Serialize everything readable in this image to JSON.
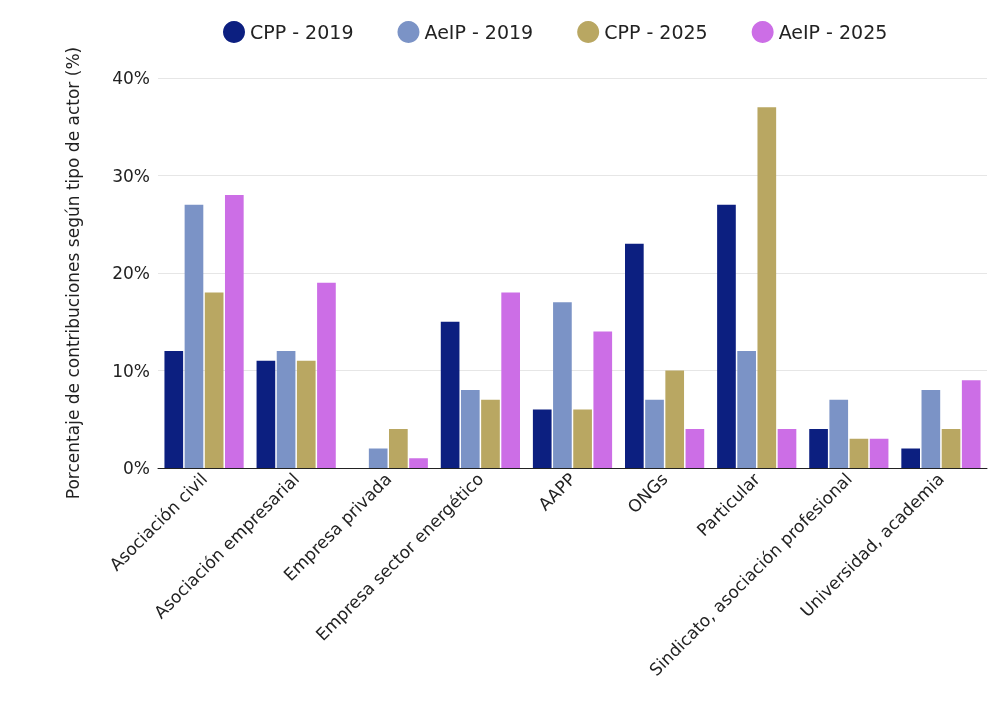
{
  "chart_data": {
    "type": "bar",
    "ylabel": "Porcentaje de contribuciones según tipo de actor (%)",
    "categories": [
      "Asociación civil",
      "Asociación empresarial",
      "Empresa privada",
      "Empresa sector energético",
      "AAPP",
      "ONGs",
      "Particular",
      "Sindicato, asociación profesional",
      "Universidad, academia"
    ],
    "series": [
      {
        "name": "CPP - 2019",
        "color": "#0c1f80",
        "values": [
          12,
          11,
          0,
          15,
          6,
          23,
          27,
          4,
          2
        ]
      },
      {
        "name": "AeIP - 2019",
        "color": "#7b93c6",
        "values": [
          27,
          12,
          2,
          8,
          17,
          7,
          12,
          7,
          8
        ]
      },
      {
        "name": "CPP - 2025",
        "color": "#b9a762",
        "values": [
          18,
          11,
          4,
          7,
          6,
          10,
          37,
          3,
          4
        ]
      },
      {
        "name": "AeIP - 2025",
        "color": "#cc6ee6",
        "values": [
          28,
          19,
          1,
          18,
          14,
          4,
          4,
          3,
          9
        ]
      }
    ],
    "ylim": [
      0,
      40
    ],
    "yticks": [
      {
        "value": 0,
        "label": "0%"
      },
      {
        "value": 10,
        "label": "10%"
      },
      {
        "value": 20,
        "label": "20%"
      },
      {
        "value": 30,
        "label": "30%"
      },
      {
        "value": 40,
        "label": "40%"
      }
    ],
    "grid": "y",
    "legend": "top"
  }
}
